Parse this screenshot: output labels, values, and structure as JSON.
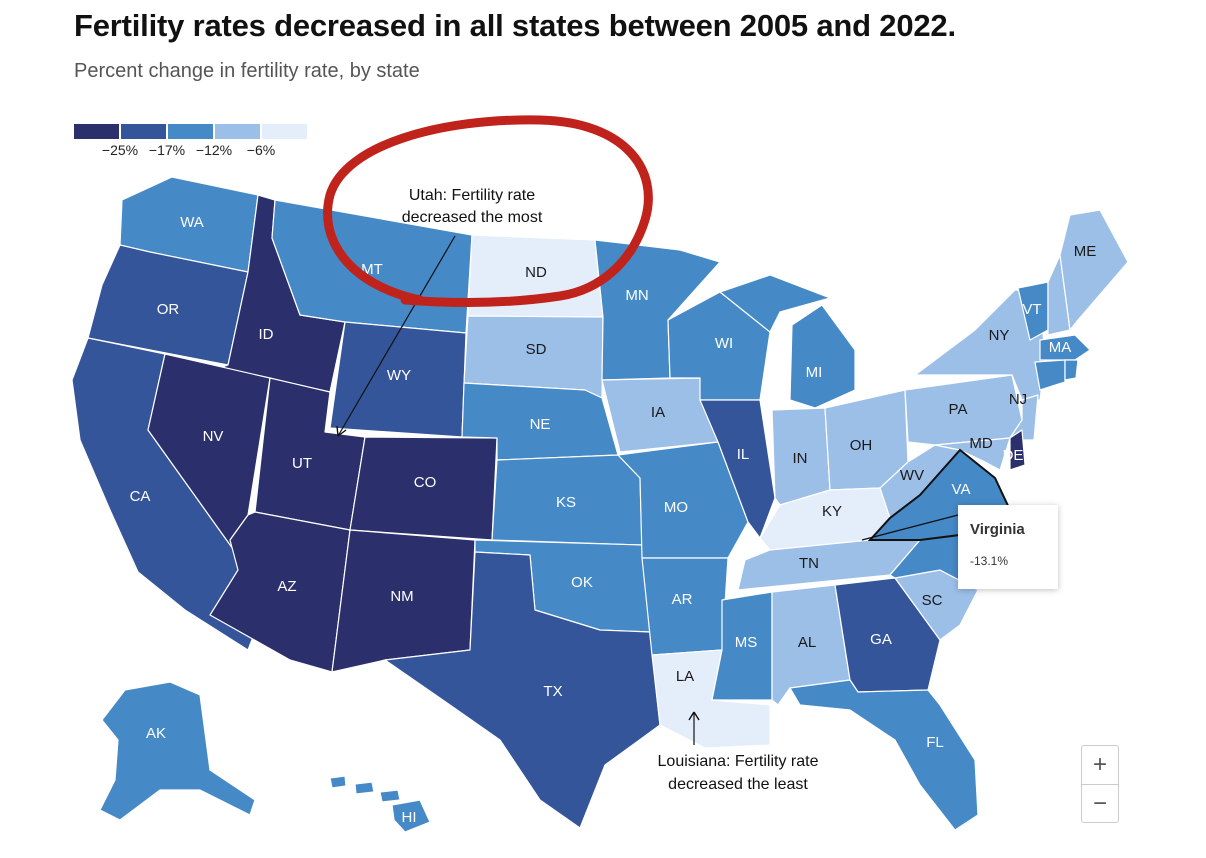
{
  "title": "Fertility rates decreased in all states between 2005 and 2022.",
  "subtitle": "Percent change in fertility rate, by state",
  "legend": {
    "colors": [
      "#2b2f6b",
      "#34559a",
      "#4589c7",
      "#9cbfe8",
      "#e4edfa"
    ],
    "ticks": [
      "−25%",
      "−17%",
      "−12%",
      "−6%"
    ]
  },
  "annotations": {
    "utah_line1": "Utah: Fertility rate",
    "utah_line2": "decreased the most",
    "louisiana_line1": "Louisiana: Fertility rate",
    "louisiana_line2": "decreased the least"
  },
  "tooltip": {
    "state": "Virginia",
    "value": "-13.1%"
  },
  "zoom": {
    "in_label": "+",
    "out_label": "−"
  },
  "circle_color": "#c0231c",
  "chart_data": {
    "type": "choropleth",
    "title": "Fertility rates decreased in all states between 2005 and 2022.",
    "subtitle": "Percent change in fertility rate, by state",
    "legend_breaks": [
      -25,
      -17,
      -12,
      -6
    ],
    "states": [
      {
        "abbr": "WA",
        "bin": 2
      },
      {
        "abbr": "OR",
        "bin": 1
      },
      {
        "abbr": "CA",
        "bin": 1
      },
      {
        "abbr": "ID",
        "bin": 0
      },
      {
        "abbr": "NV",
        "bin": 0
      },
      {
        "abbr": "UT",
        "bin": 0
      },
      {
        "abbr": "AZ",
        "bin": 0
      },
      {
        "abbr": "MT",
        "bin": 2
      },
      {
        "abbr": "WY",
        "bin": 1
      },
      {
        "abbr": "CO",
        "bin": 0
      },
      {
        "abbr": "NM",
        "bin": 0
      },
      {
        "abbr": "ND",
        "bin": 4
      },
      {
        "abbr": "SD",
        "bin": 3
      },
      {
        "abbr": "NE",
        "bin": 2
      },
      {
        "abbr": "KS",
        "bin": 2
      },
      {
        "abbr": "OK",
        "bin": 2
      },
      {
        "abbr": "TX",
        "bin": 1
      },
      {
        "abbr": "MN",
        "bin": 2
      },
      {
        "abbr": "IA",
        "bin": 3
      },
      {
        "abbr": "MO",
        "bin": 2
      },
      {
        "abbr": "AR",
        "bin": 2
      },
      {
        "abbr": "LA",
        "bin": 4
      },
      {
        "abbr": "WI",
        "bin": 2
      },
      {
        "abbr": "IL",
        "bin": 1
      },
      {
        "abbr": "MI",
        "bin": 2
      },
      {
        "abbr": "IN",
        "bin": 3
      },
      {
        "abbr": "OH",
        "bin": 3
      },
      {
        "abbr": "KY",
        "bin": 4
      },
      {
        "abbr": "TN",
        "bin": 3
      },
      {
        "abbr": "MS",
        "bin": 2
      },
      {
        "abbr": "AL",
        "bin": 3
      },
      {
        "abbr": "GA",
        "bin": 1
      },
      {
        "abbr": "FL",
        "bin": 2
      },
      {
        "abbr": "SC",
        "bin": 3
      },
      {
        "abbr": "NC",
        "bin": 2
      },
      {
        "abbr": "VA",
        "bin": 2
      },
      {
        "abbr": "WV",
        "bin": 3
      },
      {
        "abbr": "PA",
        "bin": 3
      },
      {
        "abbr": "NY",
        "bin": 3
      },
      {
        "abbr": "VT",
        "bin": 2
      },
      {
        "abbr": "NH",
        "bin": 3
      },
      {
        "abbr": "ME",
        "bin": 3
      },
      {
        "abbr": "MA",
        "bin": 2
      },
      {
        "abbr": "CT",
        "bin": 2
      },
      {
        "abbr": "RI",
        "bin": 2
      },
      {
        "abbr": "NJ",
        "bin": 3
      },
      {
        "abbr": "DE",
        "bin": 0
      },
      {
        "abbr": "MD",
        "bin": 3
      },
      {
        "abbr": "AK",
        "bin": 2
      },
      {
        "abbr": "HI",
        "bin": 2
      }
    ],
    "highlight": {
      "state": "Virginia",
      "value": -13.1
    }
  }
}
